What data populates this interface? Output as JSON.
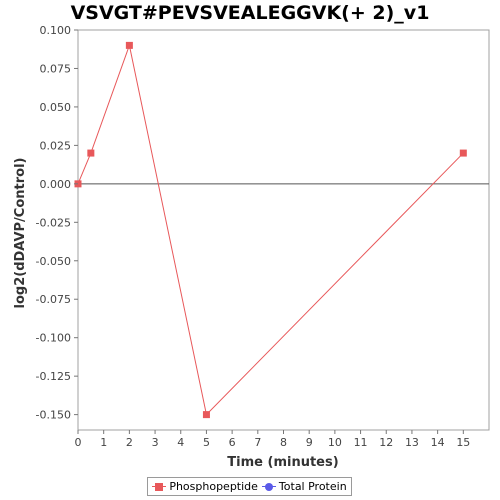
{
  "chart_data": {
    "type": "line",
    "title": "VSVGT#PEVSVEALEGGVK(+ 2)_v1",
    "xlabel": "Time (minutes)",
    "ylabel": "log2(dDAVP/Control)",
    "xlim": [
      0,
      16
    ],
    "ylim": [
      -0.16,
      0.1
    ],
    "x_ticks": [
      0,
      1,
      2,
      3,
      4,
      5,
      6,
      7,
      8,
      9,
      10,
      11,
      12,
      13,
      14,
      15
    ],
    "y_ticks": [
      0.1,
      0.075,
      0.05,
      0.025,
      0.0,
      -0.025,
      -0.05,
      -0.075,
      -0.1,
      -0.125,
      -0.15
    ],
    "y_tick_labels": [
      "0.100",
      "0.075",
      "0.050",
      "0.025",
      "0.000",
      "-0.025",
      "-0.050",
      "-0.075",
      "-0.100",
      "-0.125",
      "-0.150"
    ],
    "zero_line": true,
    "grid": false,
    "legend_position": "bottom-center",
    "series": [
      {
        "name": "Phosphopeptide",
        "color": "#e8585a",
        "marker": "square",
        "x": [
          0,
          0.5,
          2,
          5,
          15
        ],
        "y": [
          0.0,
          0.02,
          0.09,
          -0.15,
          0.02
        ]
      },
      {
        "name": "Total Protein",
        "color": "#5a5ae8",
        "marker": "circle",
        "x": [],
        "y": []
      }
    ]
  }
}
